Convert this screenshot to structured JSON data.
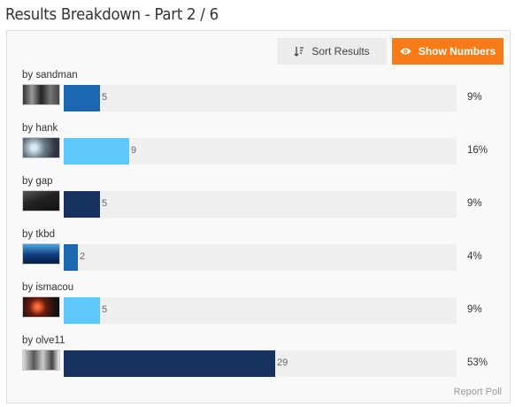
{
  "header": {
    "title": "Results Breakdown - Part 2 / 6"
  },
  "toolbar": {
    "sort_label": "Sort Results",
    "sort_icon": "sort-icon",
    "show_numbers_label": "Show Numbers",
    "show_numbers_icon": "eye-icon",
    "accent_color": "#f77b16"
  },
  "results": [
    {
      "label": "by sandman",
      "count": 5,
      "percent": "9%",
      "fill_fraction": 0.172,
      "color": "#1b68b0"
    },
    {
      "label": "by hank",
      "count": 9,
      "percent": "16%",
      "fill_fraction": 0.31,
      "color": "#5ec8fa"
    },
    {
      "label": "by gap",
      "count": 5,
      "percent": "9%",
      "fill_fraction": 0.172,
      "color": "#18325f"
    },
    {
      "label": "by tkbd",
      "count": 2,
      "percent": "4%",
      "fill_fraction": 0.069,
      "color": "#1b68b0"
    },
    {
      "label": "by ismacou",
      "count": 5,
      "percent": "9%",
      "fill_fraction": 0.172,
      "color": "#5ec8fa"
    },
    {
      "label": "by olve11",
      "count": 29,
      "percent": "53%",
      "fill_fraction": 1.0,
      "color": "#18325f"
    }
  ],
  "footer": {
    "report_label": "Report Poll"
  }
}
